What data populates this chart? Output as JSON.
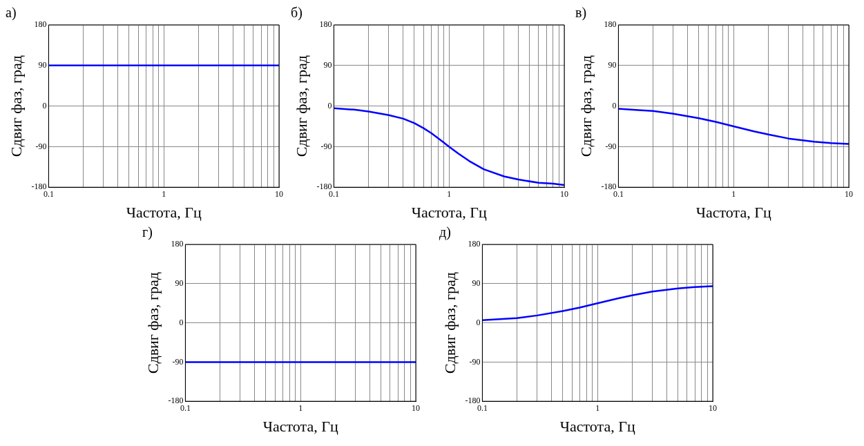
{
  "chart_data": [
    {
      "type": "line",
      "title": "а)",
      "xlabel": "Частота, Гц",
      "ylabel": "Сдвиг фаз, град",
      "x": [
        0.1,
        1,
        10
      ],
      "series": [
        {
          "color": "#0000ff",
          "values": [
            90,
            90,
            90
          ]
        }
      ],
      "xlim": [
        0.1,
        10
      ],
      "ylim": [
        -180,
        180
      ],
      "xticks": [
        0.1,
        {
          "value": 0.2,
          "label": null
        },
        {
          "value": 0.3,
          "label": null
        },
        {
          "value": 0.4,
          "label": null
        },
        {
          "value": 0.5,
          "label": null
        },
        {
          "value": 0.6,
          "label": null
        },
        {
          "value": 0.7,
          "label": null
        },
        {
          "value": 0.8,
          "label": null
        },
        {
          "value": 0.9,
          "label": null
        },
        1,
        {
          "value": 2,
          "label": null
        },
        {
          "value": 3,
          "label": null
        },
        {
          "value": 4,
          "label": null
        },
        {
          "value": 5,
          "label": null
        },
        {
          "value": 6,
          "label": null
        },
        {
          "value": 7,
          "label": null
        },
        {
          "value": 8,
          "label": null
        },
        {
          "value": 9,
          "label": null
        },
        10
      ],
      "yticks": [
        -180,
        -90,
        0,
        90,
        180
      ],
      "log": "x",
      "grid": true,
      "marker": "none",
      "line_style": "solid"
    },
    {
      "type": "line",
      "title": "б)",
      "xlabel": "Частота, Гц",
      "ylabel": "Сдвиг фаз, град",
      "x": [
        0.1,
        0.15,
        0.2,
        0.3,
        0.4,
        0.5,
        0.6,
        0.7,
        0.8,
        0.9,
        1,
        1.2,
        1.5,
        2,
        3,
        4,
        6,
        8,
        10
      ],
      "series": [
        {
          "color": "#0000ff",
          "values": [
            -5,
            -8,
            -12,
            -20,
            -28,
            -38,
            -49,
            -60,
            -71,
            -81,
            -90,
            -105,
            -122,
            -140,
            -156,
            -163,
            -170,
            -172,
            -175
          ]
        }
      ],
      "xlim": [
        0.1,
        10
      ],
      "ylim": [
        -180,
        180
      ],
      "xticks": [
        0.1,
        {
          "value": 0.2,
          "label": null
        },
        {
          "value": 0.3,
          "label": null
        },
        {
          "value": 0.4,
          "label": null
        },
        {
          "value": 0.5,
          "label": null
        },
        {
          "value": 0.6,
          "label": null
        },
        {
          "value": 0.7,
          "label": null
        },
        {
          "value": 0.8,
          "label": null
        },
        {
          "value": 0.9,
          "label": null
        },
        1,
        {
          "value": 2,
          "label": null
        },
        {
          "value": 3,
          "label": null
        },
        {
          "value": 4,
          "label": null
        },
        {
          "value": 5,
          "label": null
        },
        {
          "value": 6,
          "label": null
        },
        {
          "value": 7,
          "label": null
        },
        {
          "value": 8,
          "label": null
        },
        {
          "value": 9,
          "label": null
        },
        10
      ],
      "yticks": [
        -180,
        -90,
        0,
        90,
        180
      ],
      "log": "x",
      "grid": true,
      "marker": "none",
      "line_style": "solid"
    },
    {
      "type": "line",
      "title": "в)",
      "xlabel": "Частота, Гц",
      "ylabel": "Сдвиг фаз, град",
      "x": [
        0.1,
        0.15,
        0.2,
        0.3,
        0.5,
        0.7,
        1,
        1.5,
        2,
        3,
        5,
        7,
        10
      ],
      "series": [
        {
          "color": "#0000ff",
          "values": [
            -6,
            -9,
            -11,
            -17,
            -27,
            -35,
            -45,
            -56,
            -63,
            -72,
            -79,
            -82,
            -84
          ]
        }
      ],
      "xlim": [
        0.1,
        10
      ],
      "ylim": [
        -180,
        180
      ],
      "xticks": [
        0.1,
        {
          "value": 0.2,
          "label": null
        },
        {
          "value": 0.3,
          "label": null
        },
        {
          "value": 0.4,
          "label": null
        },
        {
          "value": 0.5,
          "label": null
        },
        {
          "value": 0.6,
          "label": null
        },
        {
          "value": 0.7,
          "label": null
        },
        {
          "value": 0.8,
          "label": null
        },
        {
          "value": 0.9,
          "label": null
        },
        1,
        {
          "value": 2,
          "label": null
        },
        {
          "value": 3,
          "label": null
        },
        {
          "value": 4,
          "label": null
        },
        {
          "value": 5,
          "label": null
        },
        {
          "value": 6,
          "label": null
        },
        {
          "value": 7,
          "label": null
        },
        {
          "value": 8,
          "label": null
        },
        {
          "value": 9,
          "label": null
        },
        10
      ],
      "yticks": [
        -180,
        -90,
        0,
        90,
        180
      ],
      "log": "x",
      "grid": true,
      "marker": "none",
      "line_style": "solid"
    },
    {
      "type": "line",
      "title": "г)",
      "xlabel": "Частота, Гц",
      "ylabel": "Сдвиг фаз, град",
      "x": [
        0.1,
        1,
        10
      ],
      "series": [
        {
          "color": "#0000ff",
          "values": [
            -90,
            -90,
            -90
          ]
        }
      ],
      "xlim": [
        0.1,
        10
      ],
      "ylim": [
        -180,
        180
      ],
      "xticks": [
        0.1,
        {
          "value": 0.2,
          "label": null
        },
        {
          "value": 0.3,
          "label": null
        },
        {
          "value": 0.4,
          "label": null
        },
        {
          "value": 0.5,
          "label": null
        },
        {
          "value": 0.6,
          "label": null
        },
        {
          "value": 0.7,
          "label": null
        },
        {
          "value": 0.8,
          "label": null
        },
        {
          "value": 0.9,
          "label": null
        },
        1,
        {
          "value": 2,
          "label": null
        },
        {
          "value": 3,
          "label": null
        },
        {
          "value": 4,
          "label": null
        },
        {
          "value": 5,
          "label": null
        },
        {
          "value": 6,
          "label": null
        },
        {
          "value": 7,
          "label": null
        },
        {
          "value": 8,
          "label": null
        },
        {
          "value": 9,
          "label": null
        },
        10
      ],
      "yticks": [
        -180,
        -90,
        0,
        90,
        180
      ],
      "log": "x",
      "grid": true,
      "marker": "none",
      "line_style": "solid"
    },
    {
      "type": "line",
      "title": "д)",
      "xlabel": "Частота, Гц",
      "ylabel": "Сдвиг фаз, град",
      "x": [
        0.1,
        0.15,
        0.2,
        0.3,
        0.5,
        0.7,
        1,
        1.5,
        2,
        3,
        5,
        7,
        10
      ],
      "series": [
        {
          "color": "#0000ff",
          "values": [
            6,
            9,
            11,
            17,
            27,
            35,
            45,
            56,
            63,
            72,
            79,
            82,
            84
          ]
        }
      ],
      "xlim": [
        0.1,
        10
      ],
      "ylim": [
        -180,
        180
      ],
      "xticks": [
        0.1,
        {
          "value": 0.2,
          "label": null
        },
        {
          "value": 0.3,
          "label": null
        },
        {
          "value": 0.4,
          "label": null
        },
        {
          "value": 0.5,
          "label": null
        },
        {
          "value": 0.6,
          "label": null
        },
        {
          "value": 0.7,
          "label": null
        },
        {
          "value": 0.8,
          "label": null
        },
        {
          "value": 0.9,
          "label": null
        },
        1,
        {
          "value": 2,
          "label": null
        },
        {
          "value": 3,
          "label": null
        },
        {
          "value": 4,
          "label": null
        },
        {
          "value": 5,
          "label": null
        },
        {
          "value": 6,
          "label": null
        },
        {
          "value": 7,
          "label": null
        },
        {
          "value": 8,
          "label": null
        },
        {
          "value": 9,
          "label": null
        },
        10
      ],
      "yticks": [
        -180,
        -90,
        0,
        90,
        180
      ],
      "log": "x",
      "grid": true,
      "marker": "none",
      "line_style": "solid"
    }
  ]
}
